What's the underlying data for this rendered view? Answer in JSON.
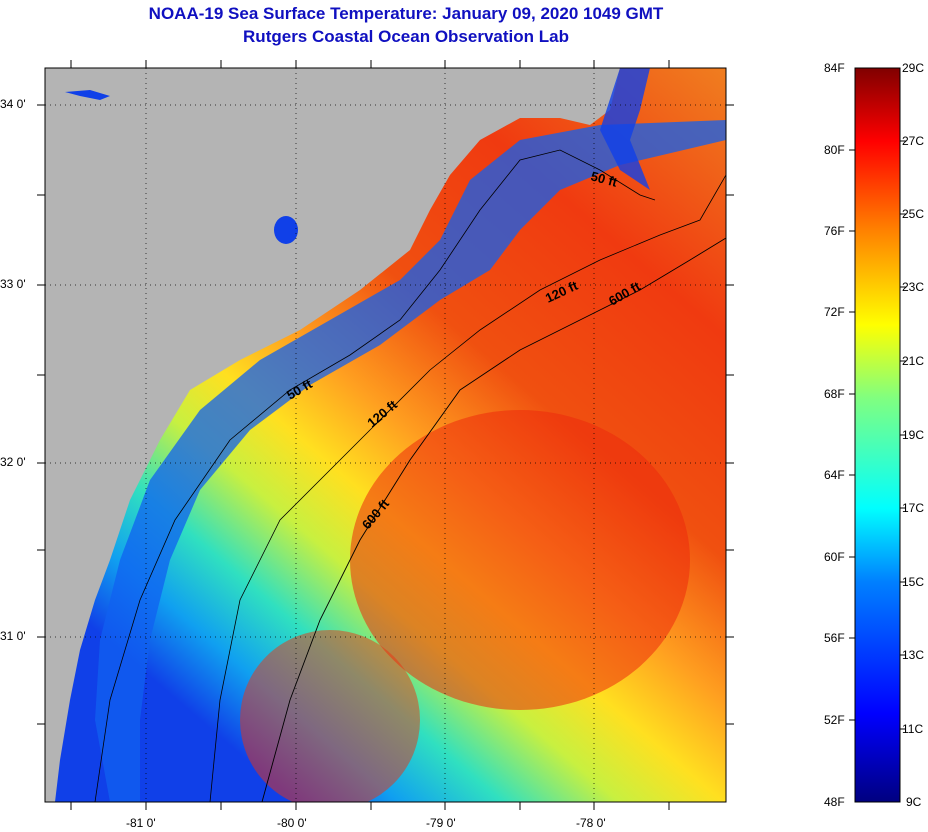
{
  "title": "NOAA-19 Sea Surface Temperature:  January 09, 2020 1049 GMT",
  "subtitle": "Rutgers Coastal Ocean Observation Lab",
  "axes": {
    "longitude_labels": [
      "-81 0'",
      "-80 0'",
      "-79 0'",
      "-78 0'"
    ],
    "latitude_labels": [
      "34 0'",
      "33 0'",
      "32 0'",
      "31 0'"
    ]
  },
  "contours": [
    {
      "label": "50 ft"
    },
    {
      "label": "50 ft"
    },
    {
      "label": "120 ft"
    },
    {
      "label": "120 ft"
    },
    {
      "label": "600 ft"
    },
    {
      "label": "600 ft"
    }
  ],
  "colorbar": {
    "fahrenheit_labels": [
      "84F",
      "80F",
      "76F",
      "72F",
      "68F",
      "64F",
      "60F",
      "56F",
      "52F",
      "48F"
    ],
    "celsius_labels": [
      "29C",
      "27C",
      "25C",
      "23C",
      "21C",
      "19C",
      "17C",
      "15C",
      "13C",
      "11C",
      "9C"
    ]
  },
  "colors": {
    "title": "#1010c0",
    "land": "#b4b4b4",
    "warm": "#ee2a0a",
    "cold": "#1030e0"
  }
}
